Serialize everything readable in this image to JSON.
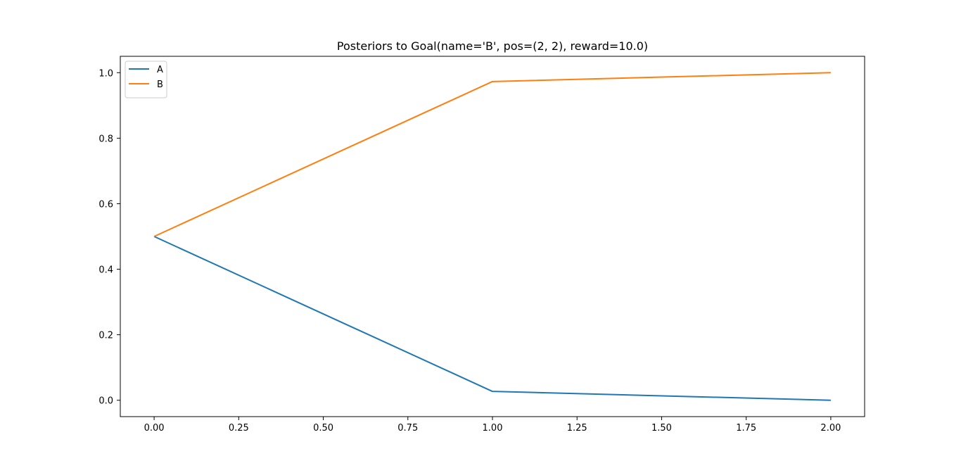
{
  "chart_data": {
    "type": "line",
    "title": "Posteriors to Goal(name='B', pos=(2, 2), reward=10.0)",
    "xlabel": "",
    "ylabel": "",
    "x": [
      0,
      1,
      2
    ],
    "series": [
      {
        "name": "A",
        "values": [
          0.5,
          0.027,
          0.0
        ],
        "color": "#1f77b4"
      },
      {
        "name": "B",
        "values": [
          0.5,
          0.973,
          1.0
        ],
        "color": "#ff7f0e"
      }
    ],
    "xlim": [
      -0.1,
      2.1
    ],
    "ylim": [
      -0.05,
      1.05
    ],
    "xticks": [
      0.0,
      0.25,
      0.5,
      0.75,
      1.0,
      1.25,
      1.5,
      1.75,
      2.0
    ],
    "xtick_labels": [
      "0.00",
      "0.25",
      "0.50",
      "0.75",
      "1.00",
      "1.25",
      "1.50",
      "1.75",
      "2.00"
    ],
    "yticks": [
      0.0,
      0.2,
      0.4,
      0.6,
      0.8,
      1.0
    ],
    "ytick_labels": [
      "0.0",
      "0.2",
      "0.4",
      "0.6",
      "0.8",
      "1.0"
    ],
    "grid": false,
    "legend_position": "top-left"
  }
}
